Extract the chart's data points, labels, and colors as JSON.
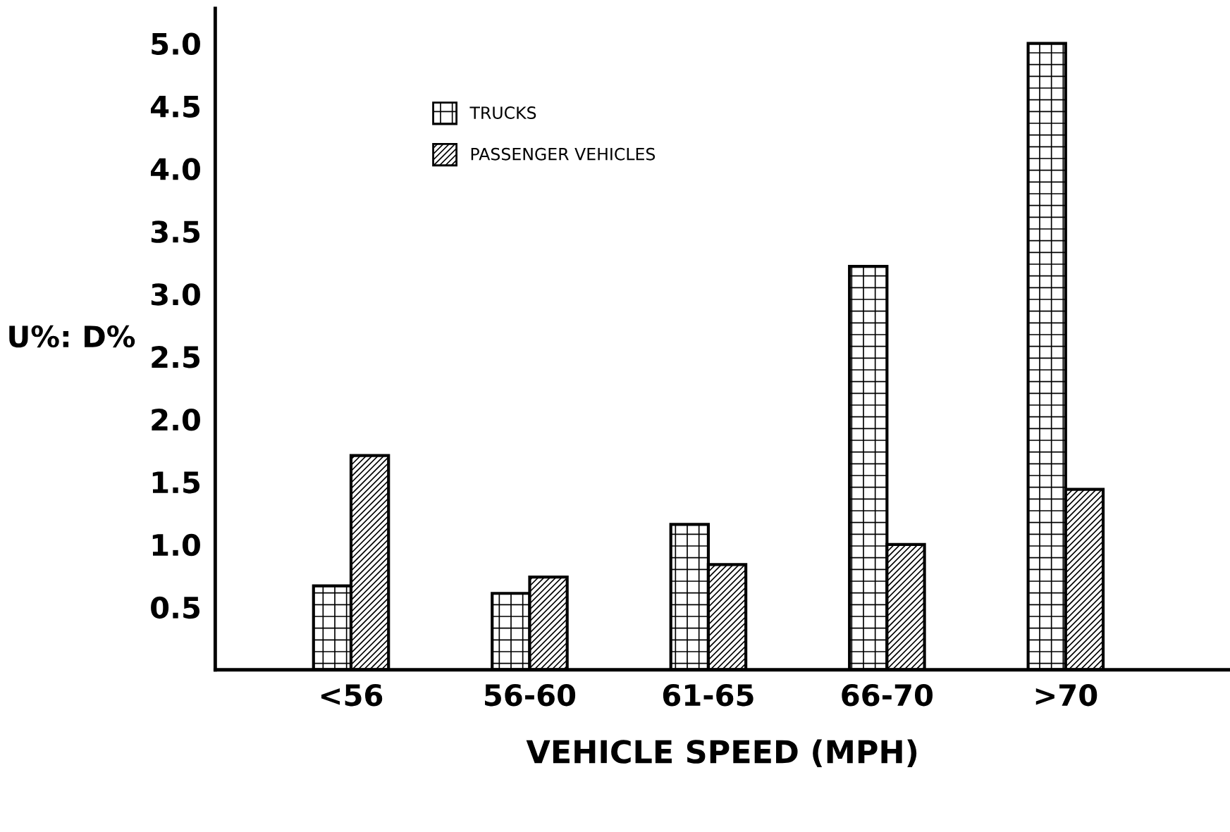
{
  "chart_data": {
    "type": "bar",
    "xlabel": "VEHICLE SPEED (MPH)",
    "ylabel": "U%: D%",
    "categories": [
      "<56",
      "56-60",
      "61-65",
      "66-70",
      ">70"
    ],
    "series": [
      {
        "name": "TRUCKS",
        "color": "#000000",
        "values": [
          0.67,
          0.61,
          1.16,
          3.22,
          5.0
        ]
      },
      {
        "name": "PASSENGER VEHICLES",
        "color": "#000000",
        "values": [
          1.71,
          0.74,
          0.84,
          1.0,
          1.44
        ]
      }
    ],
    "ylim": [
      0,
      5.28
    ],
    "yticks": [
      0.5,
      {
        "value": 1,
        "label": "1.0"
      },
      1.5,
      {
        "value": 2,
        "label": "2.0"
      },
      2.5,
      {
        "value": 3,
        "label": "3.0"
      },
      3.5,
      {
        "value": 4,
        "label": "4.0"
      },
      4.5,
      {
        "value": 5,
        "label": "5.0"
      }
    ],
    "grid": false,
    "legend": "top left"
  }
}
